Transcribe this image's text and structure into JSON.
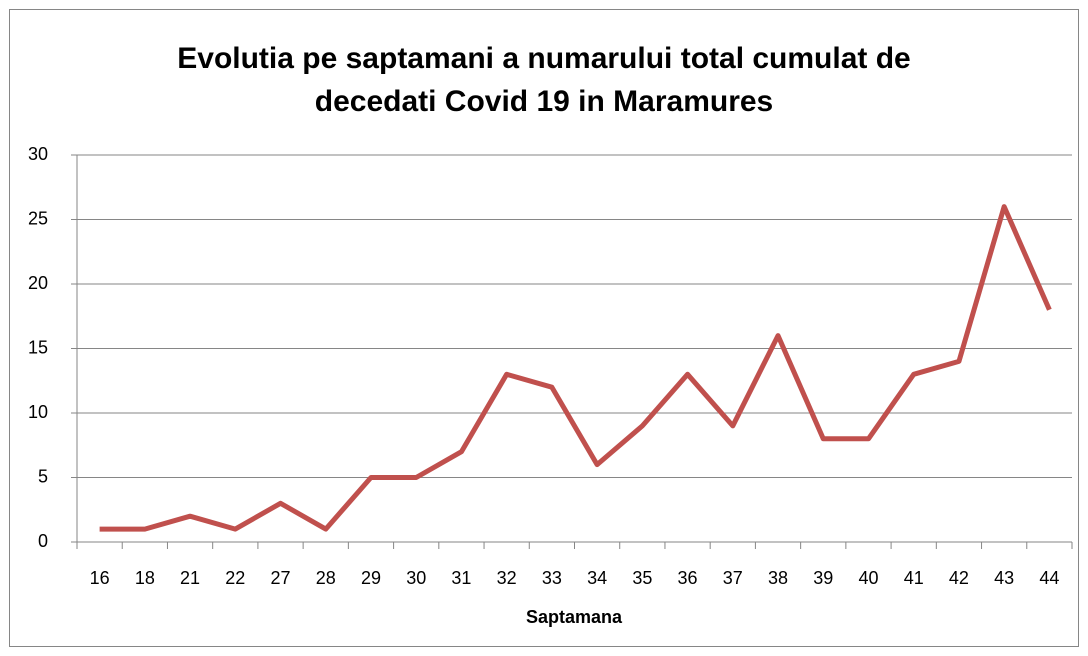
{
  "chart_data": {
    "type": "line",
    "title": [
      "Evolutia pe saptamani a numarului total cumulat de",
      "decedati Covid 19 in Maramures"
    ],
    "x_label": "Saptamana",
    "categories": [
      "16",
      "18",
      "21",
      "22",
      "27",
      "28",
      "29",
      "30",
      "31",
      "32",
      "33",
      "34",
      "35",
      "36",
      "37",
      "38",
      "39",
      "40",
      "41",
      "42",
      "43",
      "44"
    ],
    "values": [
      1,
      1,
      2,
      1,
      3,
      1,
      5,
      5,
      7,
      13,
      12,
      6,
      9,
      13,
      9,
      16,
      8,
      8,
      13,
      14,
      26,
      18
    ],
    "color": "#c0504d",
    "ylim": [
      0,
      30
    ],
    "yticks": [
      0,
      5,
      10,
      15,
      20,
      25,
      30
    ],
    "grid": true
  }
}
